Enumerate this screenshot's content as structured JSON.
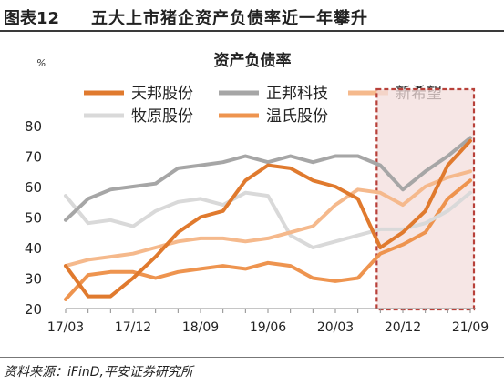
{
  "figure": {
    "label": "图表12",
    "title": "五大上市猪企资产负债率近一年攀升",
    "source": "资料来源：iFinD,平安证券研究所"
  },
  "chart_data": {
    "type": "line",
    "title": "资产负债率",
    "corner_mark": "%",
    "xlabel": "",
    "ylabel": "",
    "ylim": [
      20,
      80
    ],
    "yticks": [
      20,
      30,
      40,
      50,
      60,
      70,
      80
    ],
    "x_ticks": [
      "17/03",
      "17/12",
      "18/09",
      "19/06",
      "20/03",
      "20/12",
      "21/09"
    ],
    "x": [
      "17/03",
      "17/06",
      "17/09",
      "17/12",
      "18/03",
      "18/06",
      "18/09",
      "18/12",
      "19/03",
      "19/06",
      "19/09",
      "19/12",
      "20/03",
      "20/06",
      "20/09",
      "20/12",
      "21/03",
      "21/06",
      "21/09"
    ],
    "grid": false,
    "legend_position": "top",
    "highlight": {
      "from": "20/09",
      "to": "21/09",
      "style": "dashed-box"
    },
    "series": [
      {
        "name": "天邦股份",
        "color": "#E07A2E",
        "values": [
          34,
          24,
          24,
          30,
          37,
          45,
          50,
          52,
          62,
          67,
          66,
          62,
          60,
          56,
          40,
          45,
          52,
          67,
          75
        ]
      },
      {
        "name": "正邦科技",
        "color": "#A6A6A6",
        "values": [
          49,
          56,
          59,
          60,
          61,
          66,
          67,
          68,
          70,
          68,
          70,
          68,
          70,
          70,
          67,
          59,
          65,
          70,
          76
        ]
      },
      {
        "name": "新希望",
        "color": "#F5B98C",
        "values": [
          34,
          36,
          37,
          38,
          40,
          42,
          43,
          43,
          42,
          43,
          45,
          47,
          54,
          59,
          58,
          54,
          60,
          63,
          65
        ]
      },
      {
        "name": "牧原股份",
        "color": "#D9D9D9",
        "values": [
          57,
          48,
          49,
          47,
          52,
          55,
          56,
          54,
          58,
          57,
          44,
          40,
          42,
          44,
          46,
          46,
          48,
          52,
          58
        ]
      },
      {
        "name": "温氏股份",
        "color": "#EE944F",
        "values": [
          23,
          31,
          32,
          32,
          30,
          32,
          33,
          34,
          33,
          35,
          34,
          30,
          29,
          30,
          38,
          41,
          45,
          56,
          62
        ]
      }
    ]
  }
}
